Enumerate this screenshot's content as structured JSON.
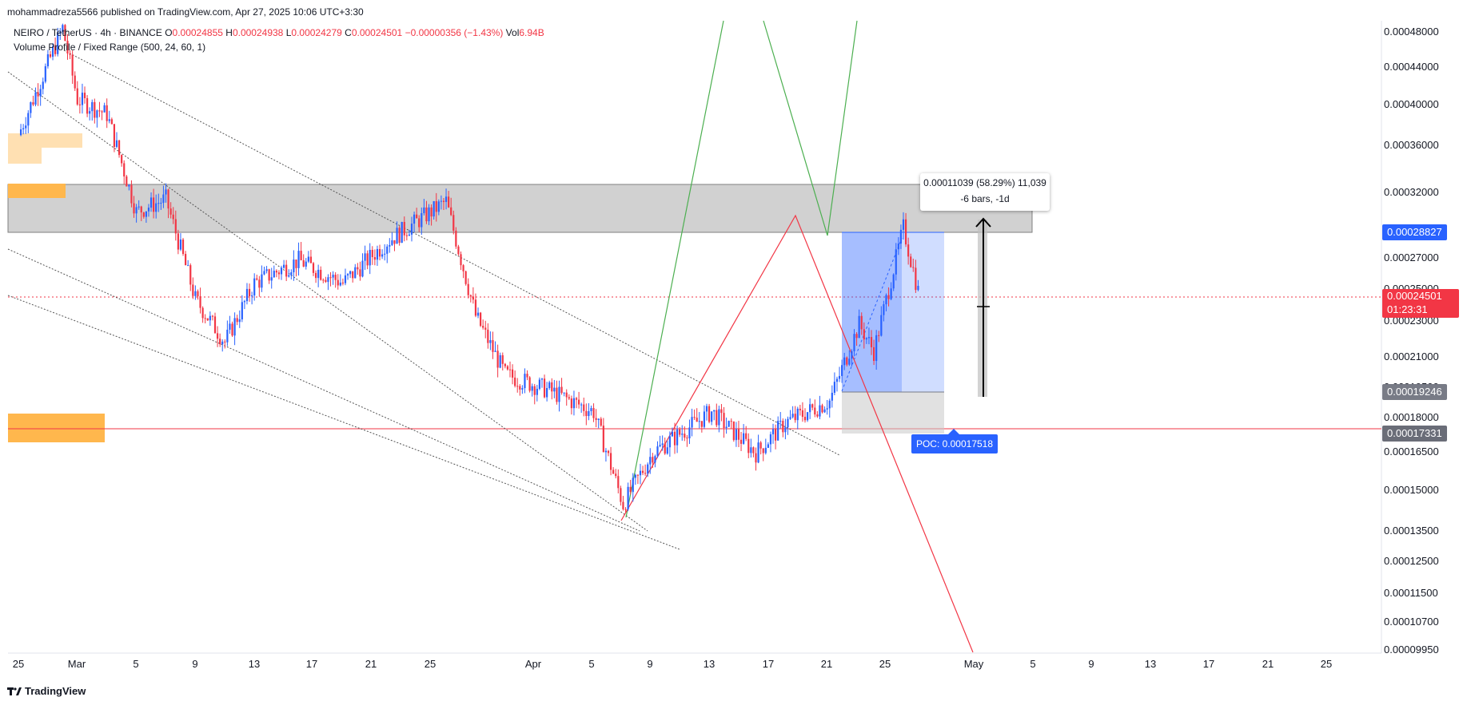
{
  "header": {
    "published": "mohammadreza5566 published on TradingView.com, Apr 27, 2025 10:06 UTC+3:30",
    "symbol": "NEIRO / TetherUS · 4h · BINANCE",
    "ohlc": {
      "o_label": "O",
      "o": "0.00024855",
      "h_label": "H",
      "h": "0.00024938",
      "l_label": "L",
      "l": "0.00024279",
      "c_label": "C",
      "c": "0.00024501",
      "change": "−0.00000356 (−1.43%)",
      "vol_label": "Vol",
      "vol": "6.94B"
    },
    "indicator": "Volume Profile / Fixed Range (500, 24, 60, 1)"
  },
  "price_axis": {
    "ticks": [
      "0.00048000",
      "0.00044000",
      "0.00040000",
      "0.00036000",
      "0.00032000",
      "0.00027000",
      "0.00025000",
      "0.00023000",
      "0.00021000",
      "0.00019500",
      "0.00018000",
      "0.00016500",
      "0.00015000",
      "0.00013500",
      "0.00012500",
      "0.00011500",
      "0.00010700",
      "0.00009950"
    ],
    "tag_high": "0.00028827",
    "tag_last": "0.00024501",
    "tag_countdown": "01:23:31",
    "tag_low": "0.00019246",
    "tag_line": "0.00017331"
  },
  "time_axis": {
    "labels": [
      "25",
      "Mar",
      "5",
      "9",
      "13",
      "17",
      "21",
      "25",
      "Apr",
      "5",
      "9",
      "13",
      "17",
      "21",
      "25",
      "May",
      "5",
      "9",
      "13",
      "17",
      "21",
      "25"
    ]
  },
  "measure": {
    "line1": "0.00011039 (58.29%) 11,039",
    "line2": "-6 bars, -1d"
  },
  "poc_label": "POC: 0.00017518",
  "footer": {
    "brand": "TradingView"
  },
  "colors": {
    "up": "#2962ff",
    "down": "#f23645",
    "zone": "#c8c8c8",
    "orange": "#ffb74d",
    "accent": "#2962ff",
    "green_line": "#4caf50",
    "red_line": "#f23645"
  },
  "chart_data": {
    "type": "candlestick",
    "timeframe": "4h",
    "last_close": 0.00024501,
    "series_description": "Price estimated from candle trajectory at key dates",
    "points": [
      {
        "date": "2025-02-25",
        "price": 0.000365
      },
      {
        "date": "2025-02-28",
        "price": 0.00048
      },
      {
        "date": "2025-03-01",
        "price": 0.0004
      },
      {
        "date": "2025-03-03",
        "price": 0.000385
      },
      {
        "date": "2025-03-05",
        "price": 0.0003
      },
      {
        "date": "2025-03-07",
        "price": 0.00031
      },
      {
        "date": "2025-03-09",
        "price": 0.00024
      },
      {
        "date": "2025-03-11",
        "price": 0.000215
      },
      {
        "date": "2025-03-13",
        "price": 0.00025
      },
      {
        "date": "2025-03-16",
        "price": 0.000265
      },
      {
        "date": "2025-03-19",
        "price": 0.00025
      },
      {
        "date": "2025-03-22",
        "price": 0.000278
      },
      {
        "date": "2025-03-26",
        "price": 0.000308
      },
      {
        "date": "2025-03-28",
        "price": 0.00023
      },
      {
        "date": "2025-03-30",
        "price": 0.000198
      },
      {
        "date": "2025-04-02",
        "price": 0.00019
      },
      {
        "date": "2025-04-05",
        "price": 0.00018
      },
      {
        "date": "2025-04-07",
        "price": 0.000142
      },
      {
        "date": "2025-04-09",
        "price": 0.000162
      },
      {
        "date": "2025-04-13",
        "price": 0.00018
      },
      {
        "date": "2025-04-16",
        "price": 0.000162
      },
      {
        "date": "2025-04-18",
        "price": 0.000175
      },
      {
        "date": "2025-04-21",
        "price": 0.000185
      },
      {
        "date": "2025-04-23",
        "price": 0.000225
      },
      {
        "date": "2025-04-24",
        "price": 0.00021
      },
      {
        "date": "2025-04-26",
        "price": 0.000288
      },
      {
        "date": "2025-04-27",
        "price": 0.000245
      }
    ],
    "ylim": [
      9.95e-05,
      0.00048
    ],
    "scale": "log"
  }
}
